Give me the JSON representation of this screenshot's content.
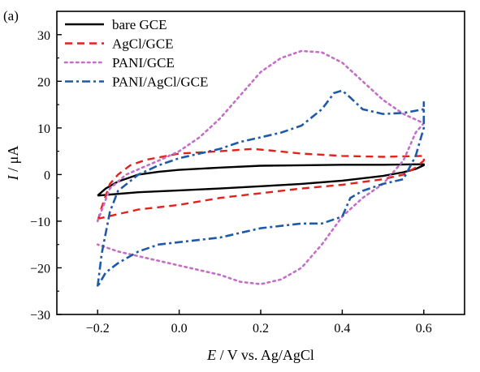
{
  "panel_label": "(a)",
  "chart_data": {
    "type": "line",
    "xlabel_italic": "E",
    "xlabel_rest": " / V vs. Ag/AgCl",
    "ylabel_italic": "I",
    "ylabel_rest": " / μA",
    "xlim": [
      -0.3,
      0.7
    ],
    "ylim": [
      -30,
      35
    ],
    "xticks": [
      -0.2,
      0.0,
      0.2,
      0.4,
      0.6
    ],
    "xtick_labels": [
      "−0.2",
      "0.0",
      "0.2",
      "0.4",
      "0.6"
    ],
    "yticks": [
      -30,
      -20,
      -10,
      0,
      10,
      20,
      30
    ],
    "ytick_labels": [
      "−30",
      "−20",
      "−10",
      "0",
      "10",
      "20",
      "30"
    ],
    "grid": false,
    "legend_position": "top-left",
    "series": [
      {
        "name": "bare GCE",
        "color": "#000000",
        "dash": "solid",
        "points": [
          [
            -0.2,
            -4.5
          ],
          [
            -0.18,
            -3.0
          ],
          [
            -0.15,
            -1.5
          ],
          [
            -0.1,
            0.0
          ],
          [
            -0.05,
            0.6
          ],
          [
            0.0,
            1.0
          ],
          [
            0.1,
            1.5
          ],
          [
            0.2,
            1.9
          ],
          [
            0.3,
            2.0
          ],
          [
            0.4,
            2.1
          ],
          [
            0.5,
            2.1
          ],
          [
            0.6,
            2.2
          ],
          [
            0.6,
            2.0
          ],
          [
            0.58,
            1.2
          ],
          [
            0.55,
            0.5
          ],
          [
            0.5,
            -0.3
          ],
          [
            0.4,
            -1.3
          ],
          [
            0.3,
            -2.0
          ],
          [
            0.2,
            -2.5
          ],
          [
            0.1,
            -3.0
          ],
          [
            0.0,
            -3.4
          ],
          [
            -0.1,
            -3.8
          ],
          [
            -0.2,
            -4.5
          ]
        ]
      },
      {
        "name": "AgCl/GCE",
        "color": "#e3211c",
        "dash": "dashed",
        "points": [
          [
            -0.2,
            -10.0
          ],
          [
            -0.19,
            -7.0
          ],
          [
            -0.17,
            -2.0
          ],
          [
            -0.15,
            0.0
          ],
          [
            -0.12,
            2.0
          ],
          [
            -0.08,
            3.2
          ],
          [
            0.0,
            4.5
          ],
          [
            0.1,
            5.0
          ],
          [
            0.18,
            5.5
          ],
          [
            0.22,
            5.2
          ],
          [
            0.3,
            4.5
          ],
          [
            0.4,
            4.0
          ],
          [
            0.5,
            3.8
          ],
          [
            0.6,
            4.0
          ],
          [
            0.6,
            3.0
          ],
          [
            0.58,
            1.5
          ],
          [
            0.55,
            0.0
          ],
          [
            0.5,
            -1.0
          ],
          [
            0.4,
            -2.2
          ],
          [
            0.3,
            -3.0
          ],
          [
            0.2,
            -4.0
          ],
          [
            0.1,
            -5.0
          ],
          [
            0.0,
            -6.5
          ],
          [
            -0.1,
            -7.5
          ],
          [
            -0.2,
            -9.5
          ]
        ]
      },
      {
        "name": "PANI/GCE",
        "color": "#c46fc7",
        "dash": "dotted",
        "points": [
          [
            -0.2,
            -10.0
          ],
          [
            -0.17,
            -3.0
          ],
          [
            -0.13,
            0.0
          ],
          [
            -0.05,
            3.0
          ],
          [
            0.0,
            5.0
          ],
          [
            0.05,
            8.0
          ],
          [
            0.1,
            12.0
          ],
          [
            0.15,
            17.0
          ],
          [
            0.2,
            22.0
          ],
          [
            0.25,
            25.0
          ],
          [
            0.3,
            26.5
          ],
          [
            0.35,
            26.2
          ],
          [
            0.4,
            24.0
          ],
          [
            0.45,
            20.0
          ],
          [
            0.5,
            16.0
          ],
          [
            0.55,
            13.0
          ],
          [
            0.6,
            11.0
          ],
          [
            0.58,
            9.0
          ],
          [
            0.55,
            3.0
          ],
          [
            0.5,
            -2.0
          ],
          [
            0.45,
            -5.0
          ],
          [
            0.4,
            -9.0
          ],
          [
            0.35,
            -15.0
          ],
          [
            0.3,
            -20.0
          ],
          [
            0.25,
            -22.5
          ],
          [
            0.2,
            -23.5
          ],
          [
            0.15,
            -23.0
          ],
          [
            0.1,
            -21.5
          ],
          [
            0.0,
            -19.5
          ],
          [
            -0.1,
            -17.5
          ],
          [
            -0.15,
            -16.5
          ],
          [
            -0.2,
            -15.0
          ]
        ]
      },
      {
        "name": "PANI/AgCl/GCE",
        "color": "#1f5aa8",
        "dash": "dashdot",
        "points": [
          [
            -0.2,
            -24.0
          ],
          [
            -0.19,
            -17.0
          ],
          [
            -0.17,
            -8.0
          ],
          [
            -0.15,
            -3.5
          ],
          [
            -0.1,
            0.0
          ],
          [
            -0.05,
            2.0
          ],
          [
            0.0,
            3.5
          ],
          [
            0.05,
            4.5
          ],
          [
            0.1,
            5.5
          ],
          [
            0.15,
            7.0
          ],
          [
            0.2,
            8.0
          ],
          [
            0.25,
            9.0
          ],
          [
            0.3,
            10.5
          ],
          [
            0.35,
            14.0
          ],
          [
            0.38,
            17.5
          ],
          [
            0.4,
            18.0
          ],
          [
            0.42,
            16.5
          ],
          [
            0.45,
            14.0
          ],
          [
            0.5,
            13.0
          ],
          [
            0.55,
            13.2
          ],
          [
            0.6,
            14.0
          ],
          [
            0.6,
            15.5
          ],
          [
            0.6,
            10.0
          ],
          [
            0.58,
            4.0
          ],
          [
            0.55,
            -1.0
          ],
          [
            0.5,
            -2.0
          ],
          [
            0.45,
            -3.5
          ],
          [
            0.42,
            -5.0
          ],
          [
            0.4,
            -9.0
          ],
          [
            0.35,
            -10.5
          ],
          [
            0.3,
            -10.5
          ],
          [
            0.25,
            -11.0
          ],
          [
            0.2,
            -11.5
          ],
          [
            0.15,
            -12.5
          ],
          [
            0.1,
            -13.5
          ],
          [
            0.0,
            -14.5
          ],
          [
            -0.05,
            -15.0
          ],
          [
            -0.1,
            -16.5
          ],
          [
            -0.15,
            -19.0
          ],
          [
            -0.18,
            -21.0
          ],
          [
            -0.2,
            -24.0
          ]
        ]
      }
    ]
  }
}
